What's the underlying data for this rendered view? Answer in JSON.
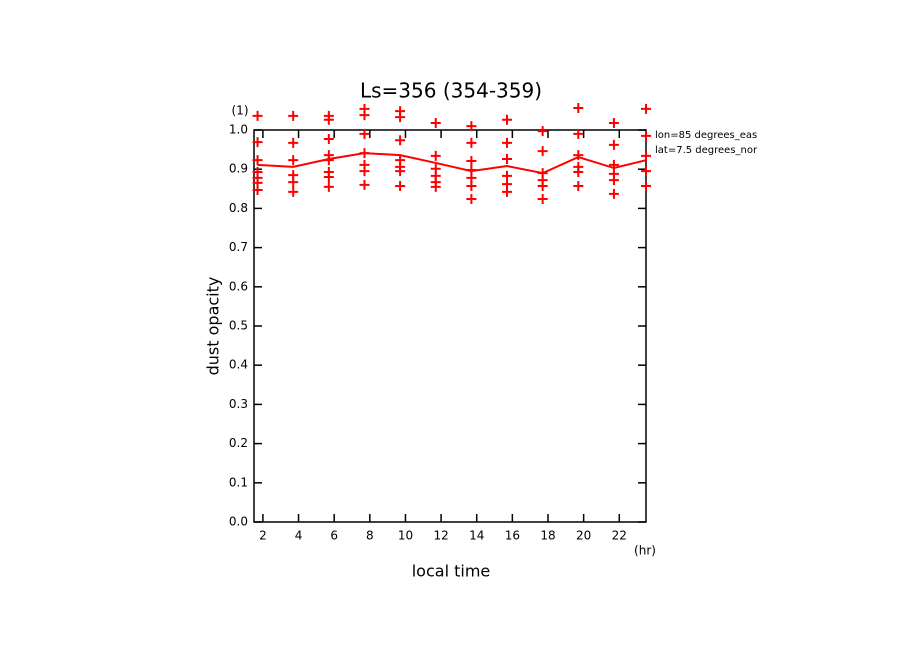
{
  "chart_data": {
    "type": "line",
    "title": "Ls=356 (354-359)",
    "x_label": "local time",
    "y_label": "dust opacity",
    "x_unit": "(hr)",
    "y_unit": "(1)",
    "annotations": [
      "lon=85 degrees_eas",
      "lat=7.5 degrees_nor"
    ],
    "color": "#ff0000",
    "x": [
      1.7,
      3.7,
      5.7,
      7.7,
      9.7,
      11.7,
      13.7,
      15.7,
      17.7,
      19.7,
      21.7,
      23.5
    ],
    "values": [
      0.911,
      0.906,
      0.926,
      0.941,
      0.936,
      0.916,
      0.895,
      0.908,
      0.89,
      0.931,
      0.903,
      0.923
    ],
    "points": {
      "x": [
        1.7,
        1.7,
        1.7,
        1.7,
        1.7,
        1.7,
        1.7,
        3.7,
        3.7,
        3.7,
        3.7,
        3.7,
        3.7,
        5.7,
        5.7,
        5.7,
        5.7,
        5.7,
        5.7,
        5.7,
        5.7,
        7.7,
        7.7,
        7.7,
        7.7,
        7.7,
        7.7,
        7.7,
        9.7,
        9.7,
        9.7,
        9.7,
        9.7,
        9.7,
        9.7,
        11.7,
        11.7,
        11.7,
        11.7,
        11.7,
        11.7,
        13.7,
        13.7,
        13.7,
        13.7,
        13.7,
        13.7,
        13.7,
        15.7,
        15.7,
        15.7,
        15.7,
        15.7,
        15.7,
        17.7,
        17.7,
        17.7,
        17.7,
        17.7,
        17.7,
        19.7,
        19.7,
        19.7,
        19.7,
        19.7,
        19.7,
        21.7,
        21.7,
        21.7,
        21.7,
        21.7,
        21.7,
        23.5,
        23.5,
        23.5,
        23.5,
        23.5
      ],
      "y": [
        1.036,
        0.969,
        0.923,
        0.893,
        0.878,
        0.865,
        0.847,
        1.036,
        0.967,
        0.923,
        0.885,
        0.867,
        0.842,
        1.036,
        1.026,
        0.977,
        0.936,
        0.923,
        0.893,
        0.88,
        0.855,
        1.054,
        1.038,
        0.99,
        0.941,
        0.911,
        0.895,
        0.86,
        1.048,
        1.033,
        0.974,
        0.923,
        0.906,
        0.895,
        0.857,
        1.018,
        0.934,
        0.901,
        0.883,
        0.867,
        0.855,
        1.01,
        0.967,
        0.921,
        0.898,
        0.878,
        0.857,
        0.824,
        1.026,
        0.967,
        0.926,
        0.883,
        0.862,
        0.842,
        0.997,
        0.946,
        0.89,
        0.872,
        0.857,
        0.824,
        1.056,
        0.99,
        0.936,
        0.906,
        0.893,
        0.857,
        1.018,
        0.962,
        0.911,
        0.888,
        0.872,
        0.837,
        1.054,
        0.985,
        0.934,
        0.895,
        0.857
      ]
    },
    "xlim": [
      1.5,
      23.5
    ],
    "ylim": [
      0,
      1
    ],
    "xticks": [
      2,
      4,
      6,
      8,
      10,
      12,
      14,
      16,
      18,
      20,
      22
    ],
    "yticks": [
      {
        "value": 0,
        "label": "0.0"
      },
      0.1,
      0.2,
      0.3,
      0.4,
      0.5,
      0.6,
      0.7,
      0.8,
      0.9,
      {
        "value": 1,
        "label": "1.0"
      }
    ]
  }
}
